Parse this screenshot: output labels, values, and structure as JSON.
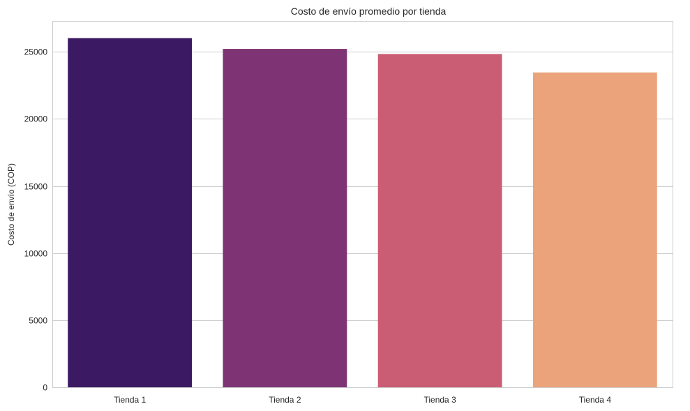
{
  "chart_data": {
    "type": "bar",
    "title": "Costo de envío promedio por tienda",
    "xlabel": "",
    "ylabel": "Costo de envío (COP)",
    "categories": [
      "Tienda 1",
      "Tienda 2",
      "Tienda 3",
      "Tienda 4"
    ],
    "values": [
      26019,
      25216,
      24834,
      23459
    ],
    "colors": [
      "#3b1a63",
      "#7e3474",
      "#ca5c74",
      "#eba37c"
    ],
    "ylim": [
      0,
      27300
    ],
    "yticks": [
      0,
      5000,
      10000,
      15000,
      20000,
      25000
    ],
    "grid": "horizontal"
  }
}
